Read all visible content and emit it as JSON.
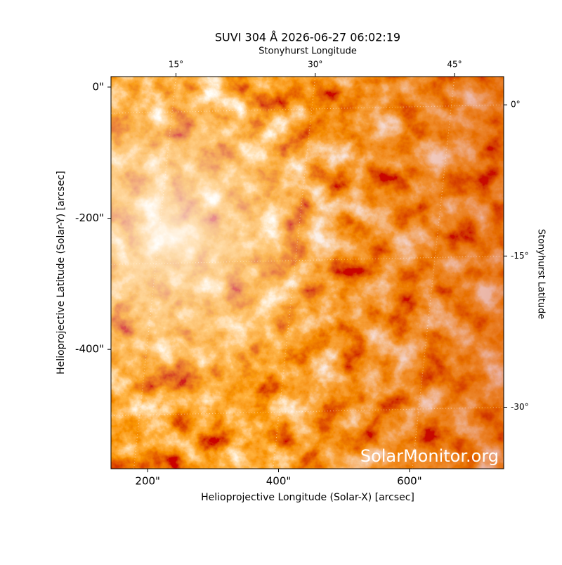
{
  "chart_data": {
    "type": "image",
    "title": "SUVI 304 Å 2026-06-27 06:02:19",
    "x_label": "Helioprojective Longitude (Solar-X) [arcsec]",
    "y_label": "Helioprojective Latitude (Solar-Y) [arcsec]",
    "x2_label": "Stonyhurst Longitude",
    "y2_label": "Stonyhurst Latitude",
    "watermark": "SolarMonitor.org",
    "xlim": [
      144,
      744
    ],
    "ylim": [
      -582,
      16
    ],
    "xticks": [
      {
        "value": 200,
        "label": "200\""
      },
      {
        "value": 400,
        "label": "400\""
      },
      {
        "value": 600,
        "label": "600\""
      }
    ],
    "yticks": [
      {
        "value": 0,
        "label": "0\""
      },
      {
        "value": -200,
        "label": "-200\""
      },
      {
        "value": -400,
        "label": "-400\""
      }
    ],
    "x2lim": [
      8,
      50.3
    ],
    "x2ticks": [
      {
        "value": 15,
        "label": "15°"
      },
      {
        "value": 30,
        "label": "30°"
      },
      {
        "value": 45,
        "label": "45°"
      }
    ],
    "y2lim": [
      -36.1,
      2.8
    ],
    "y2ticks": [
      {
        "value": 0,
        "label": "0°"
      },
      {
        "value": -15,
        "label": "-15°"
      },
      {
        "value": -30,
        "label": "-30°"
      }
    ],
    "grid": true
  }
}
